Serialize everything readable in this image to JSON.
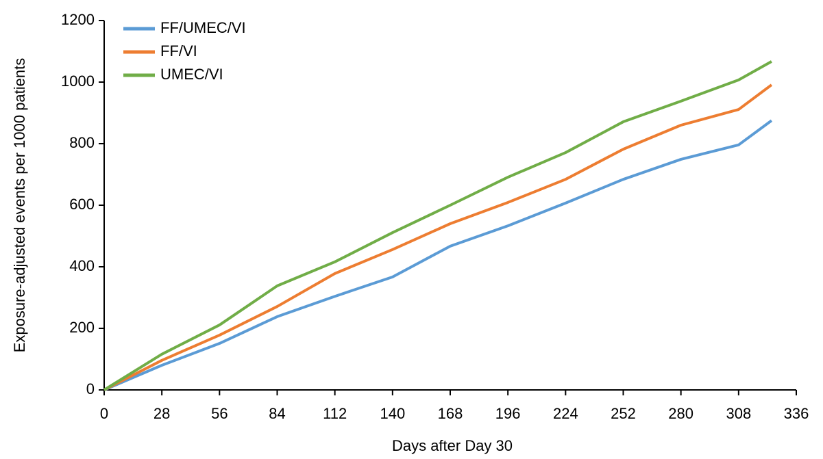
{
  "chart_data": {
    "type": "line",
    "x_label": "Days after Day 30",
    "y_label": "Exposure-adjusted events per 1000 patients",
    "x": [
      0,
      28,
      56,
      84,
      112,
      140,
      168,
      196,
      224,
      252,
      280,
      308,
      324
    ],
    "series": [
      {
        "name": "FF/UMEC/VI",
        "color": "#5b9bd5",
        "values": [
          0,
          80,
          151,
          238,
          304,
          367,
          467,
          533,
          607,
          684,
          749,
          796,
          875
        ]
      },
      {
        "name": "FF/VI",
        "color": "#ed7d31",
        "values": [
          0,
          96,
          178,
          271,
          378,
          456,
          540,
          609,
          684,
          782,
          860,
          911,
          991
        ]
      },
      {
        "name": "UMEC/VI",
        "color": "#70ad47",
        "values": [
          0,
          116,
          211,
          338,
          416,
          511,
          600,
          691,
          771,
          871,
          938,
          1007,
          1067
        ]
      }
    ],
    "xlim": [
      0,
      336
    ],
    "xticks": [
      0,
      28,
      56,
      84,
      112,
      140,
      168,
      196,
      224,
      252,
      280,
      308,
      336
    ],
    "ylim": [
      0,
      1200
    ],
    "yticks": [
      0,
      200,
      400,
      600,
      800,
      1000,
      1200
    ],
    "grid": false,
    "legend": "top-left"
  }
}
